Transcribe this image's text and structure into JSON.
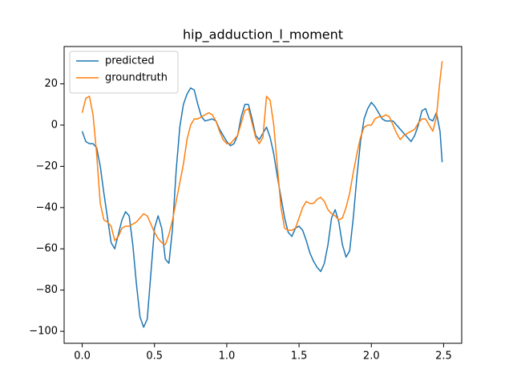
{
  "chart_data": {
    "type": "line",
    "title": "hip_adduction_l_moment",
    "x": [
      0,
      0.025,
      0.05,
      0.075,
      0.1,
      0.125,
      0.15,
      0.175,
      0.2,
      0.225,
      0.25,
      0.275,
      0.3,
      0.325,
      0.35,
      0.375,
      0.4,
      0.425,
      0.45,
      0.475,
      0.5,
      0.525,
      0.55,
      0.575,
      0.6,
      0.625,
      0.65,
      0.675,
      0.7,
      0.725,
      0.75,
      0.775,
      0.8,
      0.825,
      0.85,
      0.875,
      0.9,
      0.925,
      0.95,
      0.975,
      1.0,
      1.025,
      1.05,
      1.075,
      1.1,
      1.125,
      1.15,
      1.175,
      1.2,
      1.225,
      1.25,
      1.275,
      1.3,
      1.325,
      1.35,
      1.375,
      1.4,
      1.425,
      1.45,
      1.475,
      1.5,
      1.525,
      1.55,
      1.575,
      1.6,
      1.625,
      1.65,
      1.675,
      1.7,
      1.725,
      1.75,
      1.775,
      1.8,
      1.825,
      1.85,
      1.875,
      1.9,
      1.925,
      1.95,
      1.975,
      2.0,
      2.025,
      2.05,
      2.075,
      2.1,
      2.125,
      2.15,
      2.175,
      2.2,
      2.225,
      2.25,
      2.275,
      2.3,
      2.325,
      2.35,
      2.375,
      2.4,
      2.425,
      2.45,
      2.475,
      2.49
    ],
    "series": [
      {
        "name": "predicted",
        "color": "#1f77b4",
        "values": [
          -3,
          -8,
          -9,
          -9,
          -11,
          -20,
          -33,
          -45,
          -57,
          -60,
          -53,
          -46,
          -42,
          -44,
          -58,
          -77,
          -93,
          -98,
          -94,
          -72,
          -50,
          -44,
          -50,
          -65,
          -67,
          -50,
          -22,
          -1,
          10,
          15,
          18,
          17,
          10,
          4,
          2,
          2.5,
          3,
          2,
          -2,
          -5,
          -8,
          -10,
          -9,
          -5,
          4,
          10,
          10,
          3,
          -5,
          -7,
          -4,
          -1,
          -6,
          -14,
          -25,
          -35,
          -45,
          -52,
          -54,
          -50,
          -49,
          -51,
          -56,
          -62,
          -66,
          -69,
          -71,
          -67,
          -58,
          -45,
          -41,
          -47,
          -58,
          -64,
          -61,
          -45,
          -25,
          -8,
          3,
          8,
          11,
          9,
          6,
          3,
          2,
          2,
          2,
          0,
          -2,
          -4,
          -6,
          -8,
          -5,
          0,
          7,
          8,
          3,
          2,
          6,
          -3,
          -18
        ]
      },
      {
        "name": "groundtruth",
        "color": "#ff7f0e",
        "values": [
          6,
          13,
          14,
          5,
          -14,
          -38,
          -46,
          -47,
          -49,
          -56,
          -54,
          -50,
          -49,
          -49,
          -48,
          -47,
          -45,
          -43,
          -44,
          -48,
          -52,
          -55,
          -57,
          -58,
          -53,
          -46,
          -37,
          -28,
          -19,
          -7,
          0,
          3,
          3,
          4,
          5,
          6,
          5,
          2,
          -3,
          -7,
          -9,
          -9,
          -7,
          -5,
          1,
          7,
          8,
          1,
          -6,
          -9,
          -6,
          14,
          12,
          0,
          -20,
          -40,
          -50,
          -51,
          -51,
          -50,
          -45,
          -40,
          -37,
          -38,
          -38,
          -36,
          -35,
          -37,
          -41,
          -43,
          -44,
          -46,
          -45,
          -40,
          -33,
          -23,
          -14,
          -6,
          -1,
          0,
          0,
          3,
          4,
          4,
          5,
          4,
          0,
          -4,
          -7,
          -5,
          -4,
          -3,
          -2,
          1,
          3,
          3,
          0,
          -3,
          4,
          22,
          31
        ]
      }
    ],
    "xlim": [
      -0.125,
      2.625
    ],
    "ylim": [
      -105.8,
      38.1
    ],
    "xticks": [
      {
        "value": 0,
        "label": "0.0"
      },
      {
        "value": 0.5,
        "label": "0.5"
      },
      {
        "value": 1,
        "label": "1.0"
      },
      {
        "value": 1.5,
        "label": "1.5"
      },
      {
        "value": 2,
        "label": "2.0"
      },
      {
        "value": 2.5,
        "label": "2.5"
      }
    ],
    "yticks": [
      {
        "value": -100,
        "label": "−100"
      },
      {
        "value": -80,
        "label": "−80"
      },
      {
        "value": -60,
        "label": "−60"
      },
      {
        "value": -40,
        "label": "−40"
      },
      {
        "value": -20,
        "label": "−20"
      },
      0,
      20
    ],
    "grid": false,
    "legend": "upper left"
  }
}
